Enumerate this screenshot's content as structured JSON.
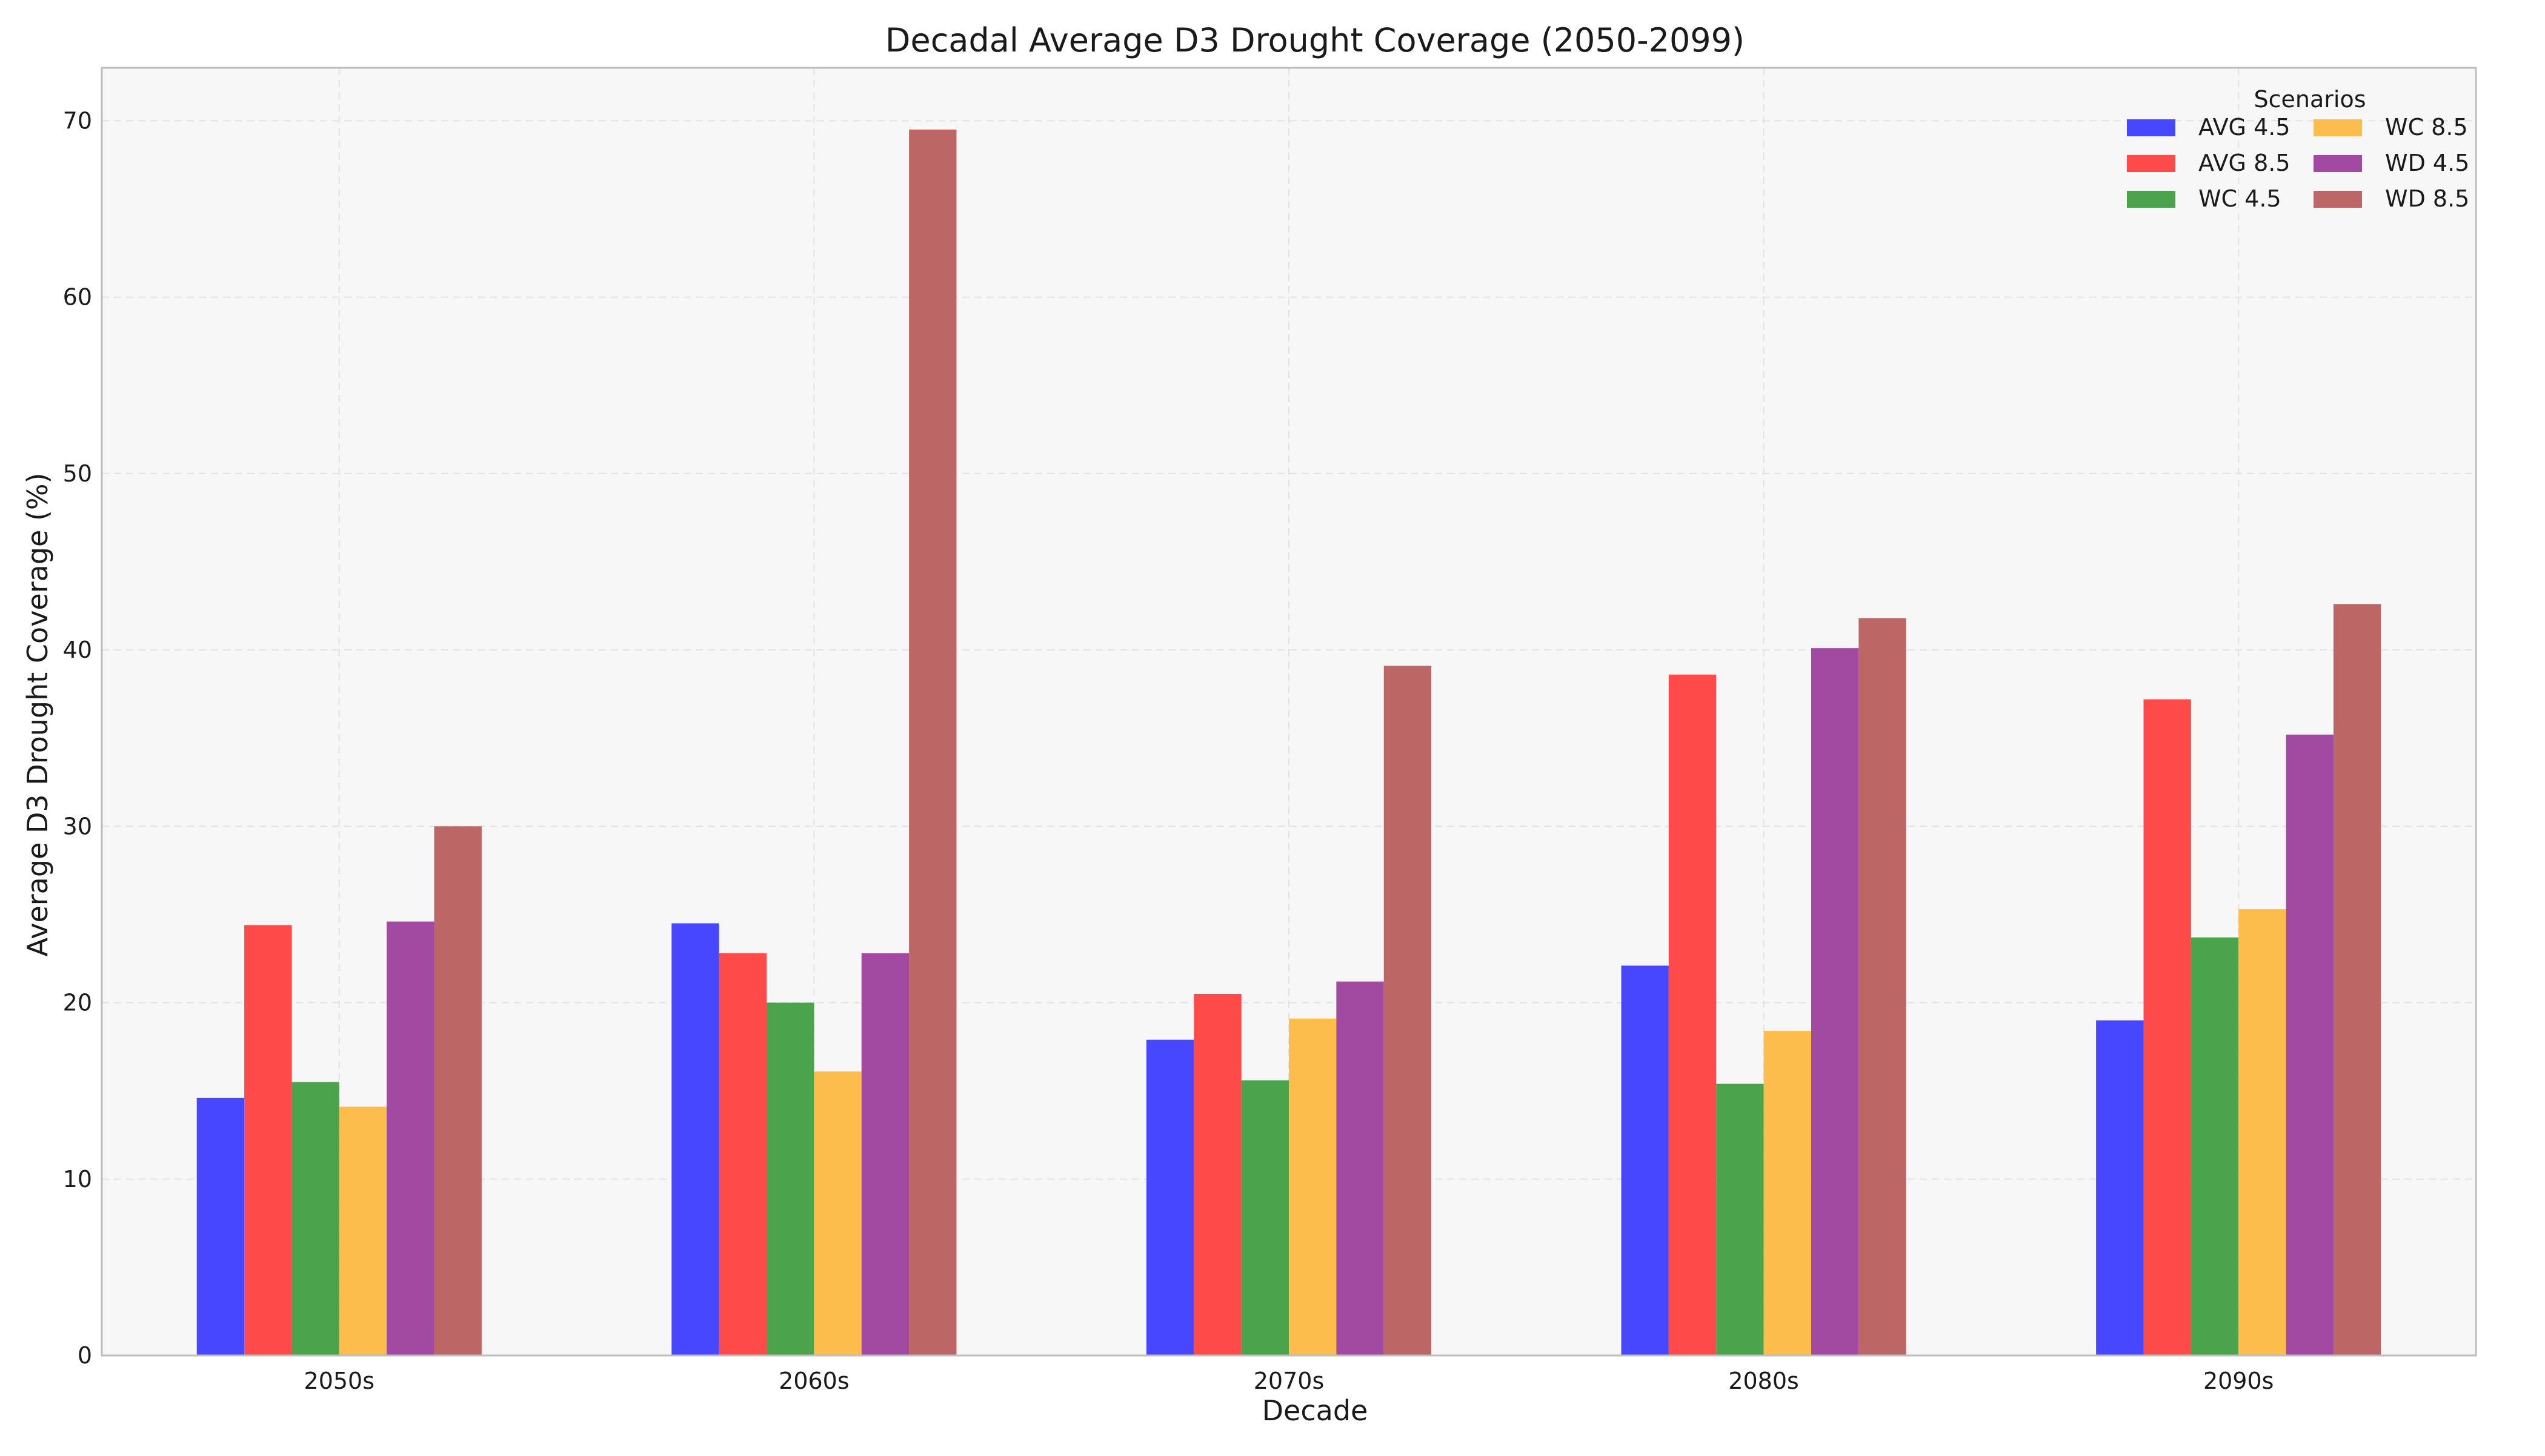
{
  "chart_data": {
    "type": "bar",
    "title": "Decadal Average D3 Drought Coverage (2050-2099)",
    "xlabel": "Decade",
    "ylabel": "Average D3 Drought Coverage (%)",
    "ylim": [
      0,
      73
    ],
    "yticks": [
      0,
      10,
      20,
      30,
      40,
      50,
      60,
      70
    ],
    "grid": true,
    "categories": [
      "2050s",
      "2060s",
      "2070s",
      "2080s",
      "2090s"
    ],
    "legend": {
      "title": "Scenarios",
      "placement": "top-right",
      "columns": 2
    },
    "series": [
      {
        "name": "AVG 4.5",
        "color": "#4747ff",
        "values": [
          14.6,
          24.5,
          17.9,
          22.1,
          19.0
        ]
      },
      {
        "name": "AVG 8.5",
        "color": "#ff4a4a",
        "values": [
          24.4,
          22.8,
          20.5,
          38.6,
          37.2
        ]
      },
      {
        "name": "WC 4.5",
        "color": "#4ba34b",
        "values": [
          15.5,
          20.0,
          15.6,
          15.4,
          23.7
        ]
      },
      {
        "name": "WC 8.5",
        "color": "#fdbd4c",
        "values": [
          14.1,
          16.1,
          19.1,
          18.4,
          25.3
        ]
      },
      {
        "name": "WD 4.5",
        "color": "#a24aa2",
        "values": [
          24.6,
          22.8,
          21.2,
          40.1,
          35.2
        ]
      },
      {
        "name": "WD 8.5",
        "color": "#bd6666",
        "values": [
          30.0,
          69.5,
          39.1,
          41.8,
          42.6
        ]
      }
    ]
  }
}
